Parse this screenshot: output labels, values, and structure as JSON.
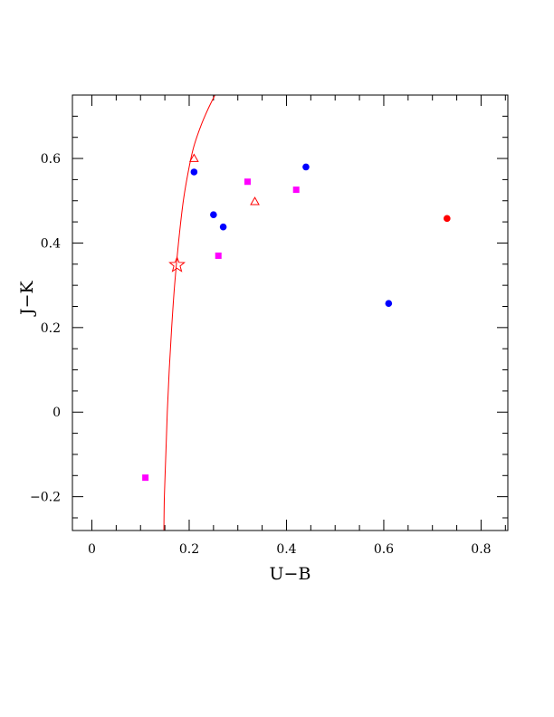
{
  "chart_data": {
    "type": "scatter",
    "xlabel": "U−B",
    "ylabel": "J−K",
    "xlim": [
      -0.04,
      0.855
    ],
    "ylim": [
      -0.28,
      0.75
    ],
    "xticks": [
      {
        "value": 0,
        "label": "0"
      },
      {
        "value": 0.2,
        "label": "0.2"
      },
      {
        "value": 0.4,
        "label": "0.4"
      },
      {
        "value": 0.6,
        "label": "0.6"
      },
      {
        "value": 0.8,
        "label": "0.8"
      }
    ],
    "yticks": [
      {
        "value": -0.2,
        "label": "−0.2"
      },
      {
        "value": 0,
        "label": "0"
      },
      {
        "value": 0.2,
        "label": "0.2"
      },
      {
        "value": 0.4,
        "label": "0.4"
      },
      {
        "value": 0.6,
        "label": "0.6"
      }
    ],
    "x_minor_step": 0.05,
    "y_minor_step": 0.05,
    "colors": {
      "blue": "#0000ff",
      "magenta": "#ff00ff",
      "red": "#ff0000",
      "curve": "#ff0000",
      "frame": "#000000"
    },
    "series": [
      {
        "marker": "circle",
        "color": "blue",
        "points": [
          [
            0.21,
            0.568
          ],
          [
            0.25,
            0.467
          ],
          [
            0.27,
            0.438
          ],
          [
            0.44,
            0.58
          ],
          [
            0.61,
            0.257
          ]
        ]
      },
      {
        "marker": "square",
        "color": "magenta",
        "points": [
          [
            0.11,
            -0.155
          ],
          [
            0.26,
            0.37
          ],
          [
            0.32,
            0.545
          ],
          [
            0.42,
            0.526
          ]
        ]
      },
      {
        "marker": "circle",
        "color": "red",
        "points": [
          [
            0.73,
            0.458
          ]
        ]
      },
      {
        "marker": "triangle-open",
        "color": "red",
        "points": [
          [
            0.21,
            0.6
          ],
          [
            0.335,
            0.498
          ]
        ]
      },
      {
        "marker": "star-open",
        "color": "red",
        "points": [
          [
            0.175,
            0.348
          ]
        ]
      }
    ],
    "curve": {
      "color": "curve",
      "points": [
        [
          0.148,
          -0.28
        ],
        [
          0.149,
          -0.2
        ],
        [
          0.152,
          -0.1
        ],
        [
          0.155,
          0.0
        ],
        [
          0.159,
          0.1
        ],
        [
          0.164,
          0.2
        ],
        [
          0.17,
          0.3
        ],
        [
          0.178,
          0.4
        ],
        [
          0.188,
          0.5
        ],
        [
          0.2,
          0.58
        ],
        [
          0.21,
          0.63
        ],
        [
          0.225,
          0.68
        ],
        [
          0.24,
          0.72
        ],
        [
          0.253,
          0.75
        ]
      ]
    }
  }
}
